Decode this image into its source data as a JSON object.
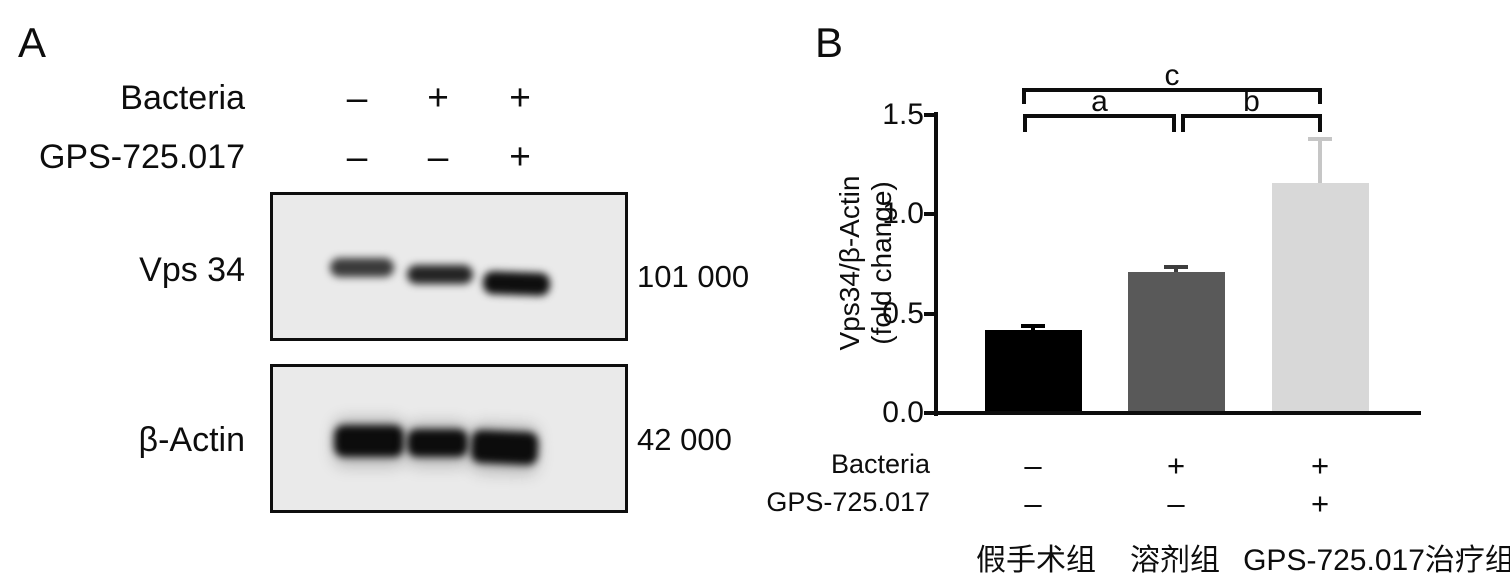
{
  "figure": {
    "panel_a": {
      "label": "A",
      "condition_rows": [
        {
          "label": "Bacteria",
          "values": [
            "–",
            "+",
            "+"
          ]
        },
        {
          "label": "GPS-725.017",
          "values": [
            "–",
            "–",
            "+"
          ]
        }
      ],
      "blots": [
        {
          "target": "Vps 34",
          "molecular_weight": "101 000"
        },
        {
          "target": "β-Actin",
          "molecular_weight": "42 000"
        }
      ]
    },
    "panel_b": {
      "label": "B"
    }
  },
  "chart_data": {
    "type": "bar",
    "title": "",
    "categories": [
      "假手术组",
      "溶剂组",
      "GPS-725.017治疗组"
    ],
    "values": [
      0.42,
      0.71,
      1.16
    ],
    "errors_plus": [
      0.02,
      0.025,
      0.22
    ],
    "bar_colors": [
      "#000000",
      "#595959",
      "#d8d8d8"
    ],
    "error_colors": [
      "#000000",
      "#3d3d3d",
      "#c6c6c6"
    ],
    "ylabel_line1": "Vps34/β-Actin",
    "ylabel_line2": "(fold change)",
    "ytick_labels": [
      "0.0",
      "0.5",
      "1.0",
      "1.5"
    ],
    "yticks": [
      0.0,
      0.5,
      1.0,
      1.5
    ],
    "ylim": [
      0.0,
      1.5
    ],
    "grid": false,
    "legend": "none",
    "condition_rows": [
      {
        "label": "Bacteria",
        "values": [
          "–",
          "+",
          "+"
        ]
      },
      {
        "label": "GPS-725.017",
        "values": [
          "–",
          "–",
          "+"
        ]
      }
    ],
    "significance_brackets": [
      {
        "label": "a",
        "between": [
          "假手术组",
          "溶剂组"
        ]
      },
      {
        "label": "b",
        "between": [
          "溶剂组",
          "GPS-725.017治疗组"
        ]
      },
      {
        "label": "c",
        "between": [
          "假手术组",
          "GPS-725.017治疗组"
        ]
      }
    ]
  }
}
